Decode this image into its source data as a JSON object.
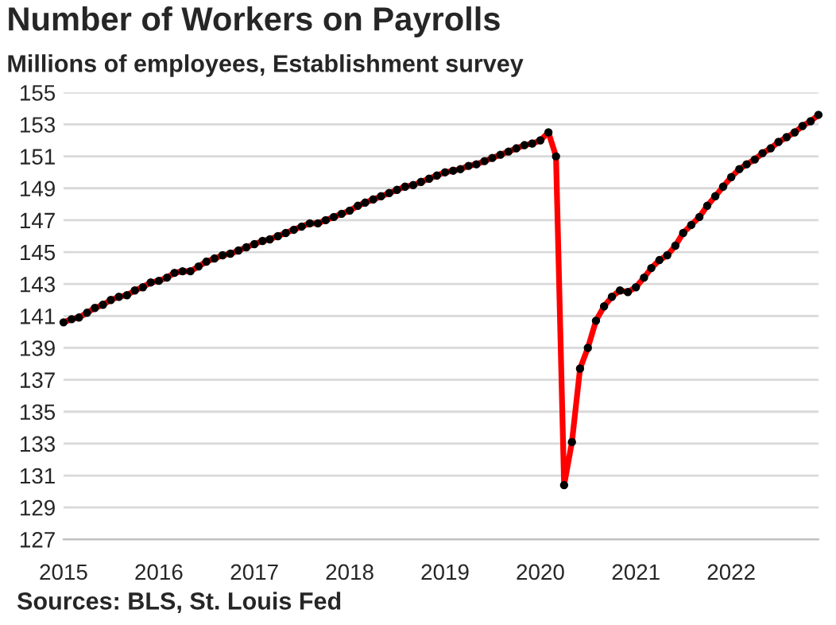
{
  "chart_data": {
    "type": "line",
    "title": "Number of Workers on Payrolls",
    "subtitle": "Millions of employees, Establishment survey",
    "annotations": [
      "Sources: BLS, St. Louis Fed"
    ],
    "x": [
      "2015-01",
      "2015-02",
      "2015-03",
      "2015-04",
      "2015-05",
      "2015-06",
      "2015-07",
      "2015-08",
      "2015-09",
      "2015-10",
      "2015-11",
      "2015-12",
      "2016-01",
      "2016-02",
      "2016-03",
      "2016-04",
      "2016-05",
      "2016-06",
      "2016-07",
      "2016-08",
      "2016-09",
      "2016-10",
      "2016-11",
      "2016-12",
      "2017-01",
      "2017-02",
      "2017-03",
      "2017-04",
      "2017-05",
      "2017-06",
      "2017-07",
      "2017-08",
      "2017-09",
      "2017-10",
      "2017-11",
      "2017-12",
      "2018-01",
      "2018-02",
      "2018-03",
      "2018-04",
      "2018-05",
      "2018-06",
      "2018-07",
      "2018-08",
      "2018-09",
      "2018-10",
      "2018-11",
      "2018-12",
      "2019-01",
      "2019-02",
      "2019-03",
      "2019-04",
      "2019-05",
      "2019-06",
      "2019-07",
      "2019-08",
      "2019-09",
      "2019-10",
      "2019-11",
      "2019-12",
      "2020-01",
      "2020-02",
      "2020-03",
      "2020-04",
      "2020-05",
      "2020-06",
      "2020-07",
      "2020-08",
      "2020-09",
      "2020-10",
      "2020-11",
      "2020-12",
      "2021-01",
      "2021-02",
      "2021-03",
      "2021-04",
      "2021-05",
      "2021-06",
      "2021-07",
      "2021-08",
      "2021-09",
      "2021-10",
      "2021-11",
      "2021-12",
      "2022-01",
      "2022-02",
      "2022-03",
      "2022-04",
      "2022-05",
      "2022-06",
      "2022-07",
      "2022-08",
      "2022-09",
      "2022-10",
      "2022-11",
      "2022-12"
    ],
    "series": [
      {
        "color": "#ff0000",
        "values": [
          140.6,
          140.8,
          140.9,
          141.2,
          141.5,
          141.7,
          142.0,
          142.2,
          142.3,
          142.6,
          142.8,
          143.1,
          143.2,
          143.4,
          143.7,
          143.8,
          143.8,
          144.1,
          144.4,
          144.6,
          144.8,
          144.9,
          145.1,
          145.3,
          145.5,
          145.7,
          145.8,
          146.0,
          146.2,
          146.4,
          146.6,
          146.8,
          146.8,
          147.0,
          147.2,
          147.4,
          147.6,
          147.9,
          148.1,
          148.3,
          148.5,
          148.7,
          148.9,
          149.1,
          149.2,
          149.4,
          149.6,
          149.8,
          150.0,
          150.1,
          150.2,
          150.4,
          150.5,
          150.7,
          150.9,
          151.1,
          151.3,
          151.5,
          151.7,
          151.8,
          152.0,
          152.5,
          151.0,
          130.4,
          133.1,
          137.7,
          139.0,
          140.7,
          141.6,
          142.2,
          142.6,
          142.5,
          142.8,
          143.4,
          144.0,
          144.5,
          144.8,
          145.4,
          146.2,
          146.7,
          147.2,
          147.9,
          148.5,
          149.1,
          149.7,
          150.2,
          150.5,
          150.8,
          151.2,
          151.5,
          151.9,
          152.2,
          152.5,
          152.9,
          153.2,
          153.6
        ]
      }
    ],
    "xlim": [
      "2015-01",
      "2022-12"
    ],
    "xticks": [
      {
        "value": "2015-01",
        "label": "2015"
      },
      {
        "value": "2016-01",
        "label": "2016"
      },
      {
        "value": "2017-01",
        "label": "2017"
      },
      {
        "value": "2018-01",
        "label": "2018"
      },
      {
        "value": "2019-01",
        "label": "2019"
      },
      {
        "value": "2020-01",
        "label": "2020"
      },
      {
        "value": "2021-01",
        "label": "2021"
      },
      {
        "value": "2022-01",
        "label": "2022"
      }
    ],
    "ylim": [
      127,
      155
    ],
    "yticks": [
      127,
      129,
      131,
      133,
      135,
      137,
      139,
      141,
      143,
      145,
      147,
      149,
      151,
      153,
      155
    ],
    "grid": "y",
    "marker": "circle",
    "line_style": "solid"
  }
}
